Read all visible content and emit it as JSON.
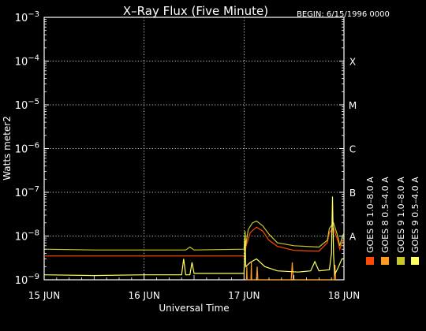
{
  "title": "X–Ray Flux (Five Minute)",
  "begin_label": "BEGIN: 6/15/1996 0000",
  "chart_data": {
    "type": "line",
    "y_scale": "log",
    "xlabel": "Universal Time",
    "ylabel": "Watts meter2",
    "xlim": [
      "1996-06-15T00:00",
      "1996-06-18T00:00"
    ],
    "ylim": [
      1e-09,
      0.001
    ],
    "x_ticks": [
      {
        "t": "1996-06-15T00:00",
        "label": "15 JUN"
      },
      {
        "t": "1996-06-16T00:00",
        "label": "16 JUN"
      },
      {
        "t": "1996-06-17T00:00",
        "label": "17 JUN"
      },
      {
        "t": "1996-06-18T00:00",
        "label": "18 JUN"
      }
    ],
    "y_ticks": [
      {
        "base": "10",
        "exp": "−3",
        "value": 0.001
      },
      {
        "base": "10",
        "exp": "−4",
        "value": 0.0001
      },
      {
        "base": "10",
        "exp": "−5",
        "value": 1e-05
      },
      {
        "base": "10",
        "exp": "−6",
        "value": 1e-06
      },
      {
        "base": "10",
        "exp": "−7",
        "value": 1e-07
      },
      {
        "base": "10",
        "exp": "−8",
        "value": 1e-08
      },
      {
        "base": "10",
        "exp": "−9",
        "value": 1e-09
      }
    ],
    "flare_classes": [
      {
        "label": "X",
        "value": 0.0001
      },
      {
        "label": "M",
        "value": 1e-05
      },
      {
        "label": "C",
        "value": 1e-06
      },
      {
        "label": "B",
        "value": 1e-07
      },
      {
        "label": "A",
        "value": 1e-08
      }
    ],
    "grid": true,
    "legend_position": "right, vertical",
    "series": [
      {
        "name": "GOES 8  1.0–8.0 A",
        "color": "#ff4a00",
        "points": [
          [
            "1996-06-15T00:00",
            3.5e-09
          ],
          [
            "1996-06-15T12:00",
            3.5e-09
          ],
          [
            "1996-06-16T00:00",
            3.5e-09
          ],
          [
            "1996-06-16T12:00",
            3.5e-09
          ],
          [
            "1996-06-17T00:00",
            3.5e-09
          ],
          [
            "1996-06-17T00:10",
            3.6e-09
          ],
          [
            "1996-06-17T00:30",
            6e-09
          ],
          [
            "1996-06-17T01:30",
            1.2e-08
          ],
          [
            "1996-06-17T03:00",
            1.6e-08
          ],
          [
            "1996-06-17T04:30",
            1.3e-08
          ],
          [
            "1996-06-17T06:00",
            8e-09
          ],
          [
            "1996-06-17T08:00",
            5.8e-09
          ],
          [
            "1996-06-17T12:00",
            4.7e-09
          ],
          [
            "1996-06-17T18:00",
            4.5e-09
          ],
          [
            "1996-06-17T20:00",
            7e-09
          ],
          [
            "1996-06-17T20:30",
            1.2e-08
          ],
          [
            "1996-06-17T21:30",
            1.5e-08
          ],
          [
            "1996-06-17T22:30",
            8e-09
          ],
          [
            "1996-06-17T23:00",
            5e-09
          ],
          [
            "1996-06-17T23:30",
            7e-09
          ],
          [
            "1996-06-18T00:00",
            8e-09
          ]
        ]
      },
      {
        "name": "GOES 8  0.5–4.0 A",
        "color": "#ff9a1e",
        "points": [
          [
            "1996-06-17T00:35",
            1e-09
          ],
          [
            "1996-06-17T00:40",
            2e-09
          ],
          [
            "1996-06-17T00:45",
            1e-09
          ],
          [
            "1996-06-17T01:40",
            1e-09
          ],
          [
            "1996-06-17T01:45",
            2.5e-09
          ],
          [
            "1996-06-17T01:50",
            1e-09
          ],
          [
            "1996-06-17T03:00",
            1e-09
          ],
          [
            "1996-06-17T03:10",
            2e-09
          ],
          [
            "1996-06-17T03:20",
            1e-09
          ],
          [
            "1996-06-17T11:20",
            1e-09
          ],
          [
            "1996-06-17T11:35",
            2.5e-09
          ],
          [
            "1996-06-17T11:50",
            1e-09
          ],
          [
            "1996-06-17T21:40",
            1e-09
          ],
          [
            "1996-06-17T21:50",
            2.2e-09
          ],
          [
            "1996-06-17T22:00",
            1e-09
          ]
        ]
      },
      {
        "name": "GOES 9  1.0–8.0 A",
        "color": "#c8c828",
        "points": [
          [
            "1996-06-15T00:00",
            5e-09
          ],
          [
            "1996-06-15T12:00",
            4.8e-09
          ],
          [
            "1996-06-16T00:00",
            4.8e-09
          ],
          [
            "1996-06-16T10:00",
            4.8e-09
          ],
          [
            "1996-06-16T11:00",
            5.6e-09
          ],
          [
            "1996-06-16T12:00",
            4.8e-09
          ],
          [
            "1996-06-17T00:00",
            5e-09
          ],
          [
            "1996-06-17T00:15",
            1.3e-08
          ],
          [
            "1996-06-17T00:25",
            6e-09
          ],
          [
            "1996-06-17T01:00",
            1.4e-08
          ],
          [
            "1996-06-17T02:00",
            2e-08
          ],
          [
            "1996-06-17T03:00",
            2.2e-08
          ],
          [
            "1996-06-17T04:30",
            1.7e-08
          ],
          [
            "1996-06-17T06:00",
            1.1e-08
          ],
          [
            "1996-06-17T08:00",
            7e-09
          ],
          [
            "1996-06-17T12:00",
            6e-09
          ],
          [
            "1996-06-17T18:00",
            5.6e-09
          ],
          [
            "1996-06-17T20:00",
            8e-09
          ],
          [
            "1996-06-17T20:30",
            1.5e-08
          ],
          [
            "1996-06-17T21:30",
            2e-08
          ],
          [
            "1996-06-17T22:30",
            1e-08
          ],
          [
            "1996-06-17T23:00",
            6e-09
          ],
          [
            "1996-06-17T23:30",
            9e-09
          ],
          [
            "1996-06-18T00:00",
            1.2e-08
          ]
        ]
      },
      {
        "name": "GOES 9  0.5–4.0 A",
        "color": "#ffff60",
        "points": [
          [
            "1996-06-15T00:00",
            1.3e-09
          ],
          [
            "1996-06-15T12:00",
            1.25e-09
          ],
          [
            "1996-06-16T00:00",
            1.3e-09
          ],
          [
            "1996-06-16T09:00",
            1.3e-09
          ],
          [
            "1996-06-16T09:30",
            3e-09
          ],
          [
            "1996-06-16T10:00",
            1.3e-09
          ],
          [
            "1996-06-16T11:00",
            1.3e-09
          ],
          [
            "1996-06-16T11:30",
            2.5e-09
          ],
          [
            "1996-06-16T12:00",
            1.4e-09
          ],
          [
            "1996-06-17T00:00",
            1.4e-09
          ],
          [
            "1996-06-17T00:15",
            8e-09
          ],
          [
            "1996-06-17T00:25",
            2e-09
          ],
          [
            "1996-06-17T01:30",
            2.5e-09
          ],
          [
            "1996-06-17T03:00",
            3e-09
          ],
          [
            "1996-06-17T05:00",
            2e-09
          ],
          [
            "1996-06-17T08:00",
            1.6e-09
          ],
          [
            "1996-06-17T13:00",
            1.5e-09
          ],
          [
            "1996-06-17T16:00",
            1.6e-09
          ],
          [
            "1996-06-17T17:00",
            2.6e-09
          ],
          [
            "1996-06-17T18:00",
            1.6e-09
          ],
          [
            "1996-06-17T20:30",
            1.7e-09
          ],
          [
            "1996-06-17T21:00",
            4e-09
          ],
          [
            "1996-06-17T21:15",
            8e-08
          ],
          [
            "1996-06-17T21:30",
            4e-09
          ],
          [
            "1996-06-17T21:45",
            1.3e-09
          ],
          [
            "1996-06-17T22:30",
            1.8e-09
          ],
          [
            "1996-06-17T23:30",
            3e-09
          ],
          [
            "1996-06-18T00:00",
            3e-09
          ]
        ]
      }
    ]
  }
}
